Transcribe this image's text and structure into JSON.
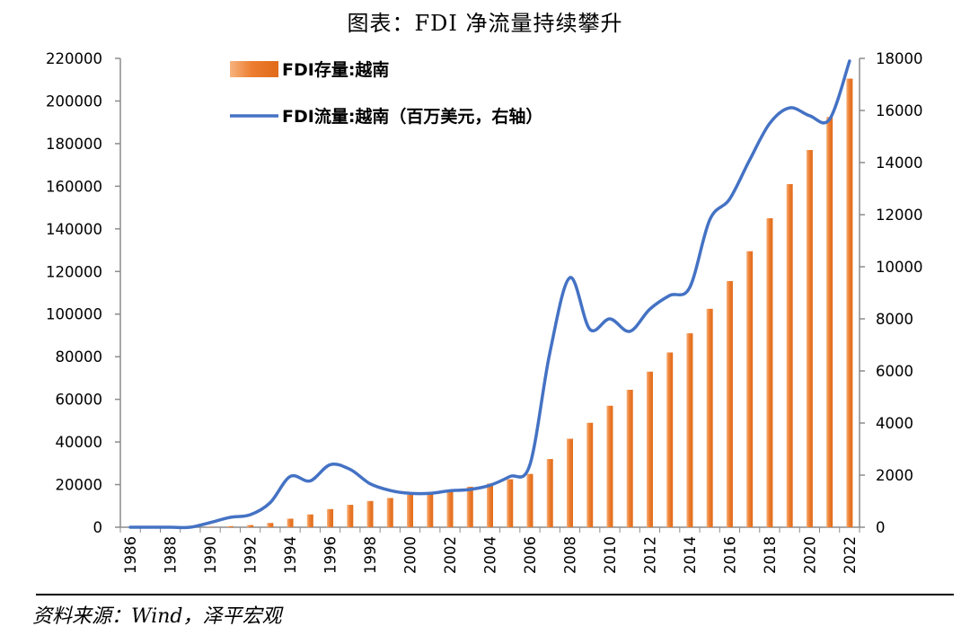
{
  "header": {
    "title": "图表：FDI 净流量持续攀升"
  },
  "footer": {
    "source": "资料来源：Wind，泽平宏观"
  },
  "chart_data": {
    "type": "bar+line",
    "x": [
      1986,
      1987,
      1988,
      1989,
      1990,
      1991,
      1992,
      1993,
      1994,
      1995,
      1996,
      1997,
      1998,
      1999,
      2000,
      2001,
      2002,
      2003,
      2004,
      2005,
      2006,
      2007,
      2008,
      2009,
      2010,
      2011,
      2012,
      2013,
      2014,
      2015,
      2016,
      2017,
      2018,
      2019,
      2020,
      2021,
      2022
    ],
    "x_tick_labels": [
      "1986",
      "1988",
      "1990",
      "1992",
      "1994",
      "1996",
      "1998",
      "2000",
      "2002",
      "2004",
      "2006",
      "2008",
      "2010",
      "2012",
      "2014",
      "2016",
      "2018",
      "2020",
      "2022"
    ],
    "left_axis": {
      "ylim": [
        0,
        220000
      ],
      "ticks": [
        "0",
        "20000",
        "40000",
        "60000",
        "80000",
        "100000",
        "120000",
        "140000",
        "160000",
        "180000",
        "200000",
        "220000"
      ]
    },
    "right_axis": {
      "ylim": [
        0,
        18000
      ],
      "ticks": [
        "0",
        "2000",
        "4000",
        "6000",
        "8000",
        "10000",
        "12000",
        "14000",
        "16000",
        "18000"
      ]
    },
    "series": [
      {
        "name": "FDI存量:越南",
        "kind": "bar",
        "axis": "left",
        "color": "#ED7D31",
        "values": [
          0,
          0,
          0,
          0,
          200,
          500,
          1000,
          2000,
          4000,
          6000,
          8500,
          10500,
          12300,
          13700,
          15200,
          16000,
          17000,
          19000,
          20500,
          22500,
          25000,
          32000,
          41500,
          49000,
          57000,
          64500,
          73000,
          82000,
          91000,
          102500,
          115500,
          129500,
          145000,
          161000,
          177000,
          192500,
          210500
        ]
      },
      {
        "name": "FDI流量:越南（百万美元，右轴）",
        "kind": "line",
        "axis": "right",
        "color": "#4472C4",
        "values": [
          0,
          0,
          0,
          0,
          180,
          380,
          480,
          940,
          1950,
          1780,
          2400,
          2220,
          1670,
          1410,
          1300,
          1300,
          1400,
          1450,
          1610,
          1950,
          2400,
          6700,
          9580,
          7600,
          8000,
          7520,
          8370,
          8900,
          9200,
          11800,
          12600,
          14100,
          15500,
          16100,
          15800,
          15660,
          17900
        ]
      }
    ],
    "legend": "top-left inside",
    "grid": false
  }
}
